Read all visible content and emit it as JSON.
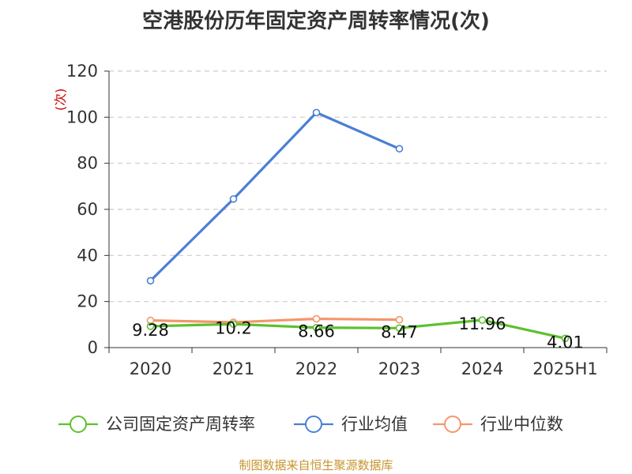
{
  "title": "空港股份历年固定资产周转率情况(次)",
  "source": "制图数据来自恒生聚源数据库",
  "chart_data": {
    "type": "line",
    "title": "空港股份历年固定资产周转率情况(次)",
    "ylabel": "(次)",
    "xlabel": "",
    "categories": [
      "2020",
      "2021",
      "2022",
      "2023",
      "2024",
      "2025H1"
    ],
    "ylim": [
      0,
      120
    ],
    "yticks": [
      0,
      20,
      40,
      60,
      80,
      100,
      120
    ],
    "grid": true,
    "legend_position": "bottom",
    "series": [
      {
        "name": "公司固定资产周转率",
        "color": "#5cc12e",
        "values": [
          9.28,
          10.2,
          8.66,
          8.47,
          11.96,
          4.01
        ],
        "labels": [
          "9.28",
          "10.2",
          "8.66",
          "8.47",
          "11.96",
          "4.01"
        ]
      },
      {
        "name": "行业均值",
        "color": "#4a7fd4",
        "values": [
          29,
          64.5,
          102,
          86.3,
          null,
          null
        ]
      },
      {
        "name": "行业中位数",
        "color": "#f4966a",
        "values": [
          11.8,
          11,
          12.5,
          12.1,
          null,
          null
        ]
      }
    ]
  }
}
